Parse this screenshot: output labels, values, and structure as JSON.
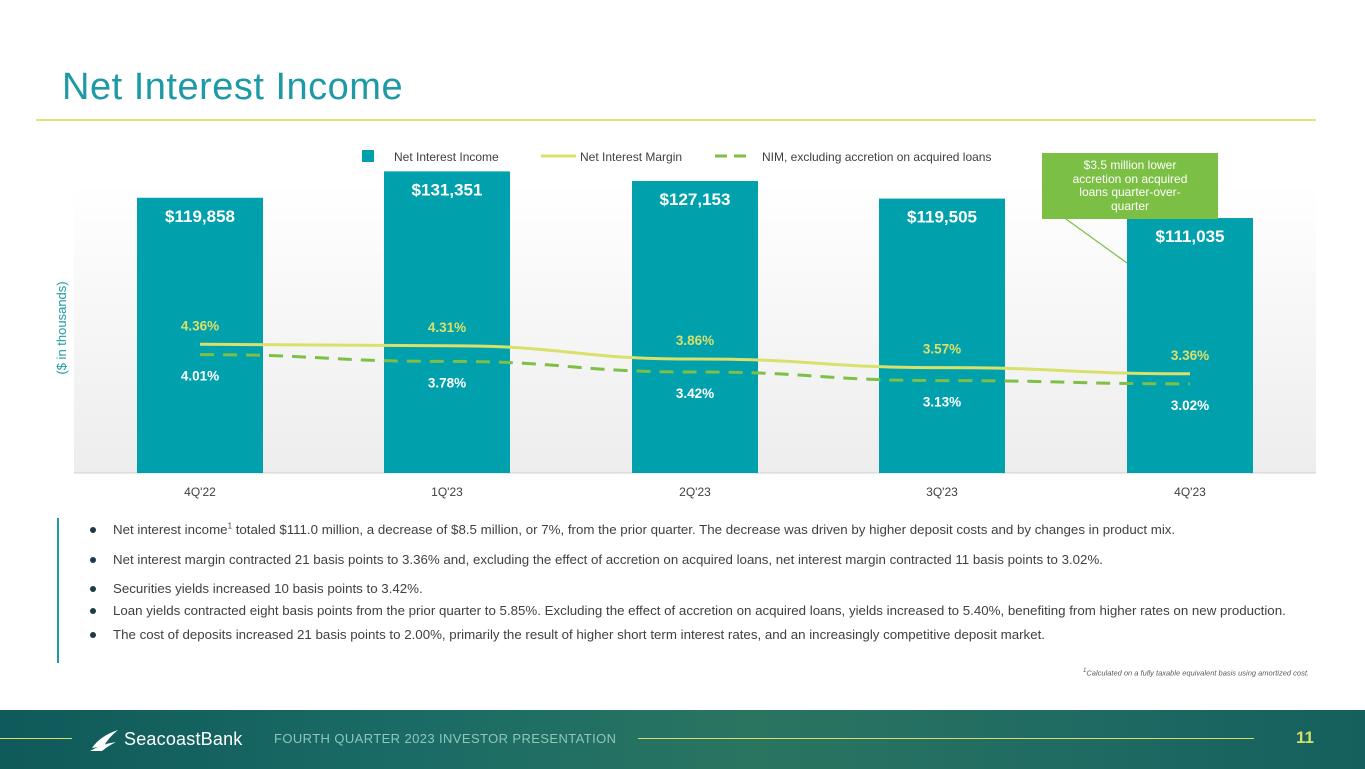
{
  "title": "Net Interest Income",
  "chart_data": {
    "type": "bar",
    "categories": [
      "4Q'22",
      "1Q'23",
      "2Q'23",
      "3Q'23",
      "4Q'23"
    ],
    "series": [
      {
        "name": "Net Interest Income",
        "kind": "bar",
        "values": [
          119858,
          131351,
          127153,
          119505,
          111035
        ],
        "labels": [
          "$119,858",
          "$131,351",
          "$127,153",
          "$119,505",
          "$111,035"
        ],
        "color": "#00a0ad"
      },
      {
        "name": "Net Interest Margin",
        "kind": "line",
        "values": [
          4.36,
          4.31,
          3.86,
          3.57,
          3.36
        ],
        "labels": [
          "4.36%",
          "4.31%",
          "3.86%",
          "3.57%",
          "3.36%"
        ],
        "color": "#d9e06b"
      },
      {
        "name": "NIM, excluding accretion on acquired loans",
        "kind": "dashed-line",
        "values": [
          4.01,
          3.78,
          3.42,
          3.13,
          3.02
        ],
        "labels": [
          "4.01%",
          "3.78%",
          "3.42%",
          "3.13%",
          "3.02%"
        ],
        "color": "#7dbf47"
      }
    ],
    "ylabel": "($ in thousands)",
    "ylim": [
      0,
      135000
    ],
    "margin_ylim": [
      0,
      10.5
    ],
    "legend_position": "top",
    "annotation": "$3.5 million lower accretion on acquired loans quarter-over-quarter"
  },
  "bullets": [
    {
      "pre": "Net interest income",
      "sup": "1",
      "post": " totaled $111.0 million, a decrease of $8.5 million, or 7%, from the prior quarter. The decrease was driven by higher deposit costs and by changes in product mix."
    },
    {
      "pre": "Net interest margin contracted 21 basis points to 3.36% and, excluding the effect of accretion on acquired loans, net interest margin contracted 11 basis points to 3.02%.",
      "sup": "",
      "post": ""
    },
    {
      "pre": "Securities yields increased 10 basis points to 3.42%.",
      "sup": "",
      "post": ""
    },
    {
      "pre": "Loan yields contracted eight basis points from the prior quarter to 5.85%. Excluding the effect of accretion on acquired loans, yields increased to 5.40%, benefiting from higher rates on new production.",
      "sup": "",
      "post": ""
    },
    {
      "pre": "The cost of deposits increased 21 basis points to 2.00%, primarily the result of higher short term interest rates, and an increasingly competitive deposit market.",
      "sup": "",
      "post": ""
    }
  ],
  "footnote": {
    "sup": "1",
    "text": "Calculated on a fully taxable equivalent basis using amortized cost."
  },
  "footer": {
    "brand": "SeacoastBank",
    "label": "FOURTH QUARTER 2023 INVESTOR PRESENTATION",
    "page": "11"
  }
}
